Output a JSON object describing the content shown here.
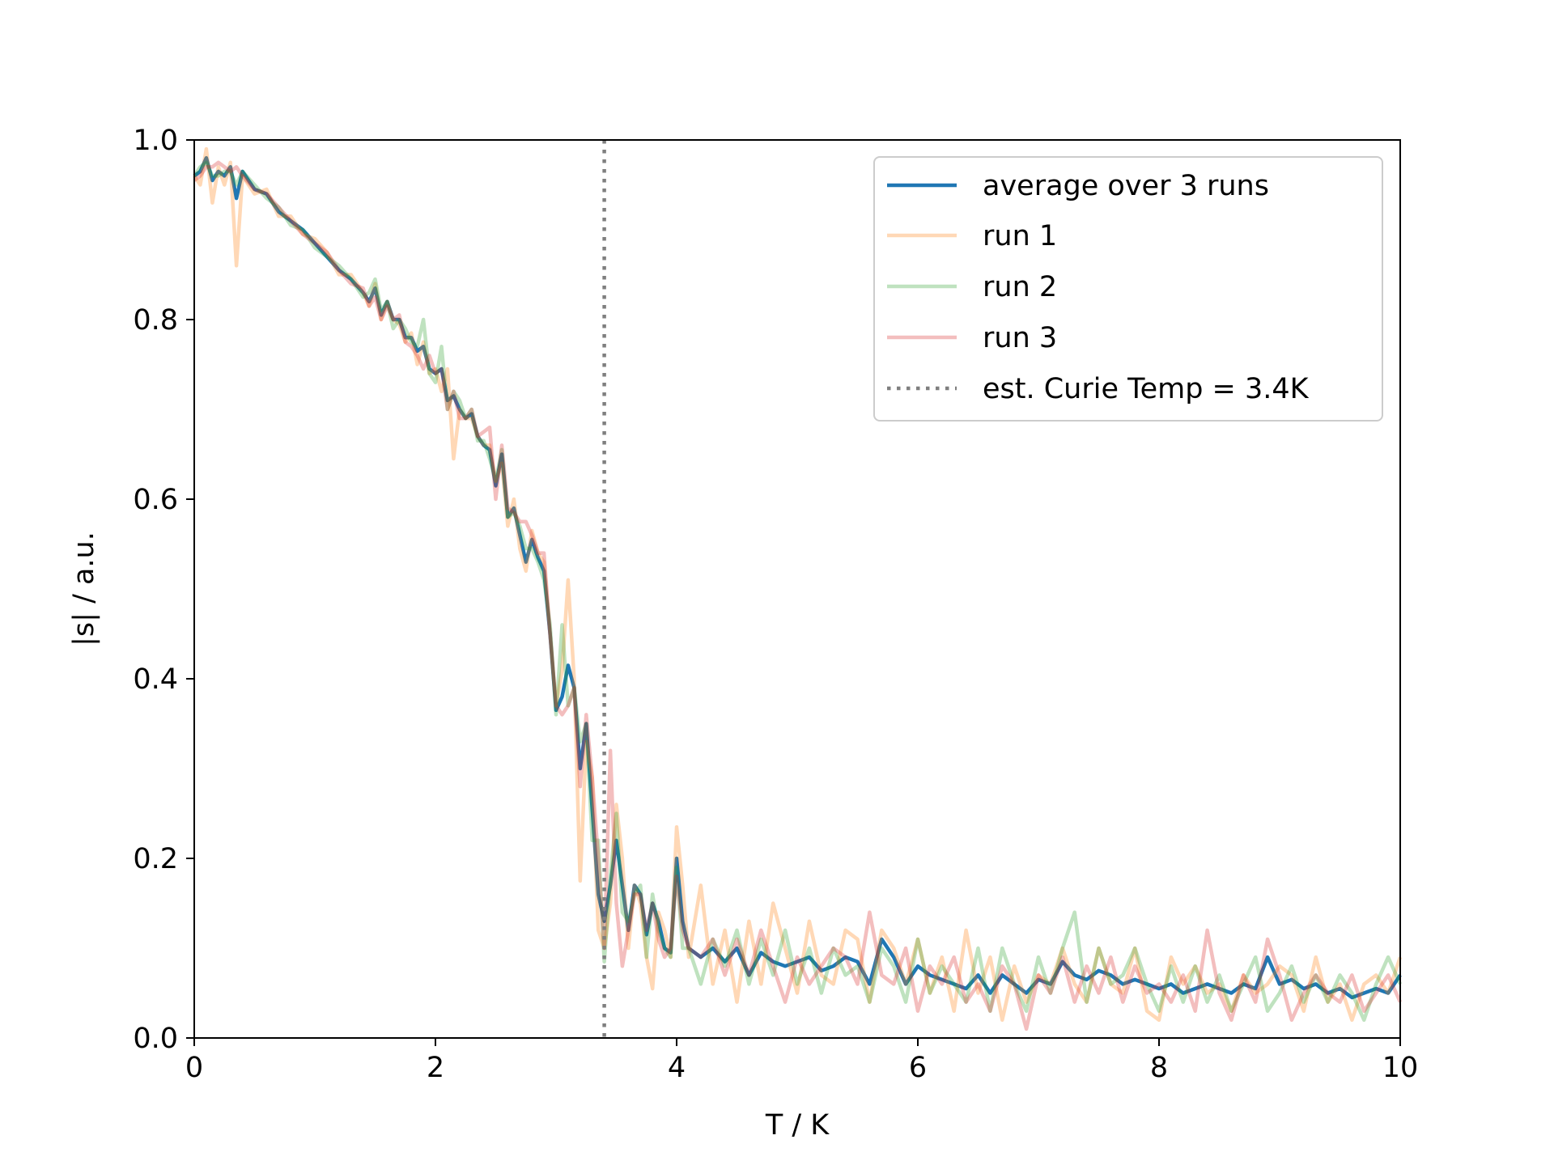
{
  "chart_data": {
    "type": "line",
    "title": "",
    "xlabel": "T / K",
    "ylabel": "|s| / a.u.",
    "xlim": [
      0,
      10
    ],
    "ylim": [
      0.0,
      1.0
    ],
    "xticks": [
      "0",
      "2",
      "4",
      "6",
      "8",
      "10"
    ],
    "yticks": [
      "0.0",
      "0.2",
      "0.4",
      "0.6",
      "0.8",
      "1.0"
    ],
    "grid": false,
    "legend_position": "top-right",
    "vline": {
      "x": 3.4,
      "label": "est. Curie Temp = 3.4K",
      "color": "#7f7f7f",
      "style": "dotted"
    },
    "series": [
      {
        "name": "average over 3 runs",
        "color": "#1f77b4",
        "opacity": 1.0,
        "x": [
          0,
          0.05,
          0.1,
          0.15,
          0.2,
          0.25,
          0.3,
          0.35,
          0.4,
          0.5,
          0.6,
          0.7,
          0.8,
          0.9,
          1.0,
          1.1,
          1.2,
          1.3,
          1.4,
          1.45,
          1.5,
          1.55,
          1.6,
          1.65,
          1.7,
          1.75,
          1.8,
          1.85,
          1.9,
          1.95,
          2.0,
          2.05,
          2.1,
          2.15,
          2.2,
          2.25,
          2.3,
          2.35,
          2.4,
          2.45,
          2.5,
          2.55,
          2.6,
          2.65,
          2.7,
          2.75,
          2.8,
          2.85,
          2.9,
          2.95,
          3.0,
          3.05,
          3.1,
          3.15,
          3.2,
          3.25,
          3.3,
          3.35,
          3.4,
          3.45,
          3.5,
          3.55,
          3.6,
          3.65,
          3.7,
          3.75,
          3.8,
          3.85,
          3.9,
          3.95,
          4.0,
          4.05,
          4.1,
          4.2,
          4.3,
          4.4,
          4.5,
          4.6,
          4.7,
          4.8,
          4.9,
          5.0,
          5.1,
          5.2,
          5.3,
          5.4,
          5.5,
          5.6,
          5.7,
          5.8,
          5.9,
          6.0,
          6.1,
          6.2,
          6.3,
          6.4,
          6.5,
          6.6,
          6.7,
          6.8,
          6.9,
          7.0,
          7.1,
          7.2,
          7.3,
          7.4,
          7.5,
          7.6,
          7.7,
          7.8,
          7.9,
          8.0,
          8.1,
          8.2,
          8.3,
          8.4,
          8.5,
          8.6,
          8.7,
          8.8,
          8.9,
          9.0,
          9.1,
          9.2,
          9.3,
          9.4,
          9.5,
          9.6,
          9.7,
          9.8,
          9.9,
          10.0
        ],
        "y": [
          0.96,
          0.965,
          0.98,
          0.955,
          0.965,
          0.96,
          0.97,
          0.935,
          0.965,
          0.945,
          0.94,
          0.92,
          0.91,
          0.9,
          0.885,
          0.87,
          0.855,
          0.845,
          0.83,
          0.82,
          0.835,
          0.805,
          0.82,
          0.8,
          0.8,
          0.78,
          0.78,
          0.765,
          0.77,
          0.745,
          0.74,
          0.745,
          0.71,
          0.715,
          0.7,
          0.69,
          0.695,
          0.67,
          0.66,
          0.655,
          0.615,
          0.65,
          0.58,
          0.59,
          0.56,
          0.53,
          0.555,
          0.535,
          0.52,
          0.45,
          0.365,
          0.38,
          0.415,
          0.39,
          0.3,
          0.35,
          0.255,
          0.16,
          0.13,
          0.17,
          0.22,
          0.17,
          0.12,
          0.17,
          0.16,
          0.115,
          0.15,
          0.13,
          0.1,
          0.095,
          0.2,
          0.13,
          0.1,
          0.09,
          0.1,
          0.085,
          0.1,
          0.07,
          0.095,
          0.085,
          0.08,
          0.085,
          0.09,
          0.075,
          0.08,
          0.09,
          0.085,
          0.06,
          0.11,
          0.09,
          0.06,
          0.08,
          0.07,
          0.065,
          0.06,
          0.055,
          0.07,
          0.05,
          0.07,
          0.06,
          0.05,
          0.065,
          0.06,
          0.085,
          0.07,
          0.065,
          0.075,
          0.07,
          0.06,
          0.065,
          0.06,
          0.055,
          0.06,
          0.05,
          0.055,
          0.06,
          0.055,
          0.05,
          0.06,
          0.055,
          0.09,
          0.06,
          0.065,
          0.055,
          0.06,
          0.05,
          0.055,
          0.045,
          0.05,
          0.055,
          0.05,
          0.07
        ]
      },
      {
        "name": "run 1",
        "color": "#ff7f0e",
        "opacity": 0.3,
        "x": [
          0,
          0.05,
          0.1,
          0.15,
          0.2,
          0.25,
          0.3,
          0.35,
          0.4,
          0.5,
          0.6,
          0.7,
          0.8,
          0.9,
          1.0,
          1.1,
          1.2,
          1.3,
          1.4,
          1.45,
          1.5,
          1.55,
          1.6,
          1.65,
          1.7,
          1.75,
          1.8,
          1.85,
          1.9,
          1.95,
          2.0,
          2.05,
          2.1,
          2.15,
          2.2,
          2.25,
          2.3,
          2.35,
          2.4,
          2.45,
          2.5,
          2.55,
          2.6,
          2.65,
          2.7,
          2.75,
          2.8,
          2.85,
          2.9,
          2.95,
          3.0,
          3.05,
          3.1,
          3.15,
          3.2,
          3.25,
          3.3,
          3.35,
          3.4,
          3.45,
          3.5,
          3.55,
          3.6,
          3.65,
          3.7,
          3.75,
          3.8,
          3.85,
          3.9,
          3.95,
          4.0,
          4.05,
          4.1,
          4.2,
          4.3,
          4.4,
          4.5,
          4.6,
          4.7,
          4.8,
          4.9,
          5.0,
          5.1,
          5.2,
          5.3,
          5.4,
          5.5,
          5.6,
          5.7,
          5.8,
          5.9,
          6.0,
          6.1,
          6.2,
          6.3,
          6.4,
          6.5,
          6.6,
          6.7,
          6.8,
          6.9,
          7.0,
          7.1,
          7.2,
          7.3,
          7.4,
          7.5,
          7.6,
          7.7,
          7.8,
          7.9,
          8.0,
          8.1,
          8.2,
          8.3,
          8.4,
          8.5,
          8.6,
          8.7,
          8.8,
          8.9,
          9.0,
          9.1,
          9.2,
          9.3,
          9.4,
          9.5,
          9.6,
          9.7,
          9.8,
          9.9,
          10.0
        ],
        "y": [
          0.96,
          0.95,
          0.99,
          0.93,
          0.97,
          0.95,
          0.975,
          0.86,
          0.96,
          0.94,
          0.945,
          0.915,
          0.915,
          0.895,
          0.89,
          0.875,
          0.85,
          0.85,
          0.83,
          0.815,
          0.84,
          0.8,
          0.82,
          0.8,
          0.795,
          0.775,
          0.785,
          0.75,
          0.775,
          0.74,
          0.745,
          0.72,
          0.745,
          0.645,
          0.7,
          0.69,
          0.69,
          0.67,
          0.66,
          0.66,
          0.62,
          0.64,
          0.57,
          0.6,
          0.545,
          0.52,
          0.565,
          0.54,
          0.53,
          0.45,
          0.37,
          0.41,
          0.51,
          0.4,
          0.175,
          0.33,
          0.29,
          0.12,
          0.1,
          0.15,
          0.26,
          0.2,
          0.1,
          0.17,
          0.15,
          0.09,
          0.055,
          0.14,
          0.12,
          0.09,
          0.235,
          0.17,
          0.09,
          0.17,
          0.06,
          0.12,
          0.04,
          0.13,
          0.06,
          0.15,
          0.1,
          0.05,
          0.13,
          0.07,
          0.06,
          0.12,
          0.11,
          0.04,
          0.12,
          0.1,
          0.06,
          0.11,
          0.05,
          0.09,
          0.03,
          0.12,
          0.05,
          0.09,
          0.02,
          0.08,
          0.04,
          0.07,
          0.06,
          0.1,
          0.06,
          0.04,
          0.1,
          0.06,
          0.05,
          0.1,
          0.03,
          0.02,
          0.09,
          0.06,
          0.08,
          0.05,
          0.06,
          0.03,
          0.07,
          0.05,
          0.06,
          0.08,
          0.07,
          0.03,
          0.09,
          0.04,
          0.06,
          0.02,
          0.06,
          0.07,
          0.05,
          0.09
        ]
      },
      {
        "name": "run 2",
        "color": "#2ca02c",
        "opacity": 0.3,
        "x": [
          0,
          0.05,
          0.1,
          0.15,
          0.2,
          0.25,
          0.3,
          0.35,
          0.4,
          0.5,
          0.6,
          0.7,
          0.8,
          0.9,
          1.0,
          1.1,
          1.2,
          1.3,
          1.4,
          1.45,
          1.5,
          1.55,
          1.6,
          1.65,
          1.7,
          1.75,
          1.8,
          1.85,
          1.9,
          1.95,
          2.0,
          2.05,
          2.1,
          2.15,
          2.2,
          2.25,
          2.3,
          2.35,
          2.4,
          2.45,
          2.5,
          2.55,
          2.6,
          2.65,
          2.7,
          2.75,
          2.8,
          2.85,
          2.9,
          2.95,
          3.0,
          3.05,
          3.1,
          3.15,
          3.2,
          3.25,
          3.3,
          3.35,
          3.4,
          3.45,
          3.5,
          3.55,
          3.6,
          3.65,
          3.7,
          3.75,
          3.8,
          3.85,
          3.9,
          3.95,
          4.0,
          4.05,
          4.1,
          4.2,
          4.3,
          4.4,
          4.5,
          4.6,
          4.7,
          4.8,
          4.9,
          5.0,
          5.1,
          5.2,
          5.3,
          5.4,
          5.5,
          5.6,
          5.7,
          5.8,
          5.9,
          6.0,
          6.1,
          6.2,
          6.3,
          6.4,
          6.5,
          6.6,
          6.7,
          6.8,
          6.9,
          7.0,
          7.1,
          7.2,
          7.3,
          7.4,
          7.5,
          7.6,
          7.7,
          7.8,
          7.9,
          8.0,
          8.1,
          8.2,
          8.3,
          8.4,
          8.5,
          8.6,
          8.7,
          8.8,
          8.9,
          9.0,
          9.1,
          9.2,
          9.3,
          9.4,
          9.5,
          9.6,
          9.7,
          9.8,
          9.9,
          10.0
        ],
        "y": [
          0.96,
          0.97,
          0.975,
          0.96,
          0.96,
          0.965,
          0.965,
          0.95,
          0.965,
          0.95,
          0.935,
          0.925,
          0.905,
          0.9,
          0.88,
          0.87,
          0.86,
          0.845,
          0.825,
          0.83,
          0.845,
          0.81,
          0.82,
          0.79,
          0.8,
          0.79,
          0.775,
          0.77,
          0.8,
          0.74,
          0.73,
          0.77,
          0.7,
          0.72,
          0.71,
          0.69,
          0.7,
          0.665,
          0.665,
          0.645,
          0.62,
          0.655,
          0.58,
          0.585,
          0.57,
          0.545,
          0.545,
          0.53,
          0.51,
          0.46,
          0.36,
          0.46,
          0.37,
          0.39,
          0.33,
          0.35,
          0.22,
          0.22,
          0.085,
          0.18,
          0.25,
          0.14,
          0.13,
          0.16,
          0.17,
          0.09,
          0.16,
          0.12,
          0.1,
          0.09,
          0.19,
          0.1,
          0.1,
          0.06,
          0.11,
          0.08,
          0.12,
          0.06,
          0.11,
          0.07,
          0.12,
          0.06,
          0.1,
          0.05,
          0.1,
          0.07,
          0.08,
          0.04,
          0.1,
          0.08,
          0.04,
          0.11,
          0.05,
          0.08,
          0.06,
          0.04,
          0.1,
          0.03,
          0.1,
          0.06,
          0.03,
          0.09,
          0.05,
          0.1,
          0.14,
          0.04,
          0.1,
          0.06,
          0.07,
          0.1,
          0.06,
          0.03,
          0.08,
          0.04,
          0.08,
          0.04,
          0.07,
          0.03,
          0.06,
          0.09,
          0.03,
          0.05,
          0.08,
          0.04,
          0.07,
          0.04,
          0.07,
          0.05,
          0.02,
          0.06,
          0.09,
          0.06
        ]
      },
      {
        "name": "run 3",
        "color": "#d62728",
        "opacity": 0.3,
        "x": [
          0,
          0.05,
          0.1,
          0.15,
          0.2,
          0.25,
          0.3,
          0.35,
          0.4,
          0.5,
          0.6,
          0.7,
          0.8,
          0.9,
          1.0,
          1.1,
          1.2,
          1.3,
          1.4,
          1.45,
          1.5,
          1.55,
          1.6,
          1.65,
          1.7,
          1.75,
          1.8,
          1.85,
          1.9,
          1.95,
          2.0,
          2.05,
          2.1,
          2.15,
          2.2,
          2.25,
          2.3,
          2.35,
          2.4,
          2.45,
          2.5,
          2.55,
          2.6,
          2.65,
          2.7,
          2.75,
          2.8,
          2.85,
          2.9,
          2.95,
          3.0,
          3.05,
          3.1,
          3.15,
          3.2,
          3.25,
          3.3,
          3.35,
          3.4,
          3.45,
          3.5,
          3.55,
          3.6,
          3.65,
          3.7,
          3.75,
          3.8,
          3.85,
          3.9,
          3.95,
          4.0,
          4.05,
          4.1,
          4.2,
          4.3,
          4.4,
          4.5,
          4.6,
          4.7,
          4.8,
          4.9,
          5.0,
          5.1,
          5.2,
          5.3,
          5.4,
          5.5,
          5.6,
          5.7,
          5.8,
          5.9,
          6.0,
          6.1,
          6.2,
          6.3,
          6.4,
          6.5,
          6.6,
          6.7,
          6.8,
          6.9,
          7.0,
          7.1,
          7.2,
          7.3,
          7.4,
          7.5,
          7.6,
          7.7,
          7.8,
          7.9,
          8.0,
          8.1,
          8.2,
          8.3,
          8.4,
          8.5,
          8.6,
          8.7,
          8.8,
          8.9,
          9.0,
          9.1,
          9.2,
          9.3,
          9.4,
          9.5,
          9.6,
          9.7,
          9.8,
          9.9,
          10.0
        ],
        "y": [
          0.955,
          0.96,
          0.97,
          0.97,
          0.975,
          0.97,
          0.965,
          0.97,
          0.96,
          0.945,
          0.94,
          0.925,
          0.91,
          0.895,
          0.885,
          0.875,
          0.855,
          0.84,
          0.835,
          0.815,
          0.825,
          0.8,
          0.815,
          0.8,
          0.805,
          0.775,
          0.77,
          0.76,
          0.745,
          0.76,
          0.74,
          0.745,
          0.7,
          0.72,
          0.69,
          0.69,
          0.7,
          0.67,
          0.675,
          0.68,
          0.6,
          0.66,
          0.59,
          0.585,
          0.575,
          0.575,
          0.56,
          0.54,
          0.54,
          0.45,
          0.37,
          0.36,
          0.37,
          0.39,
          0.28,
          0.36,
          0.29,
          0.2,
          0.1,
          0.32,
          0.15,
          0.08,
          0.12,
          0.16,
          0.16,
          0.12,
          0.15,
          0.11,
          0.09,
          0.1,
          0.18,
          0.12,
          0.1,
          0.09,
          0.11,
          0.07,
          0.11,
          0.07,
          0.12,
          0.08,
          0.04,
          0.09,
          0.06,
          0.08,
          0.1,
          0.09,
          0.06,
          0.14,
          0.07,
          0.06,
          0.1,
          0.03,
          0.08,
          0.06,
          0.09,
          0.04,
          0.06,
          0.03,
          0.08,
          0.06,
          0.01,
          0.07,
          0.05,
          0.09,
          0.04,
          0.08,
          0.05,
          0.09,
          0.04,
          0.08,
          0.05,
          0.06,
          0.04,
          0.07,
          0.03,
          0.12,
          0.05,
          0.02,
          0.07,
          0.04,
          0.11,
          0.07,
          0.02,
          0.05,
          0.07,
          0.05,
          0.04,
          0.07,
          0.03,
          0.05,
          0.07,
          0.04
        ]
      }
    ]
  }
}
